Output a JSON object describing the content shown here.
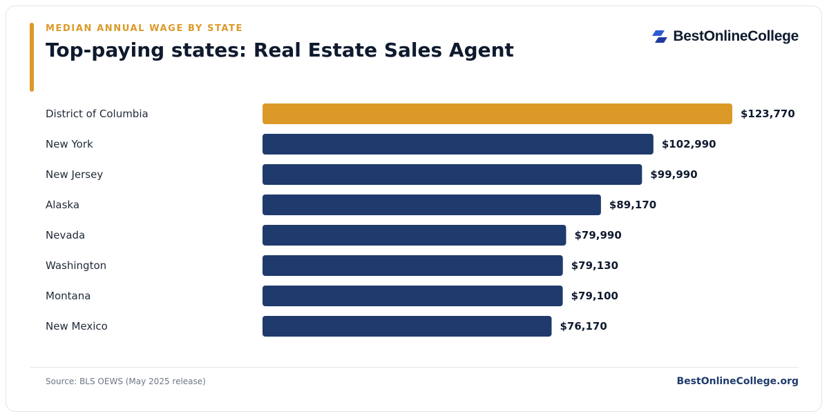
{
  "header": {
    "eyebrow": "MEDIAN ANNUAL WAGE BY STATE",
    "title": "Top-paying states: Real Estate Sales Agent",
    "logo_text": "BestOnlineCollege"
  },
  "colors": {
    "accent": "#db9a28",
    "bar": "#1f3a6c",
    "highlight_bar": "#db9a28"
  },
  "chart_data": {
    "type": "bar",
    "orientation": "horizontal",
    "categories": [
      "District of Columbia",
      "New York",
      "New Jersey",
      "Alaska",
      "Nevada",
      "Washington",
      "Montana",
      "New Mexico"
    ],
    "values": [
      123770,
      102990,
      99990,
      89170,
      79990,
      79130,
      79100,
      76170
    ],
    "value_labels": [
      "$123,770",
      "$102,990",
      "$99,990",
      "$89,170",
      "$79,990",
      "$79,130",
      "$79,100",
      "$76,170"
    ],
    "highlight_index": 0,
    "title": "Top-paying states: Real Estate Sales Agent",
    "xlabel": "",
    "ylabel": "",
    "grid": false
  },
  "footer": {
    "source": "Source: BLS OEWS (May 2025 release)",
    "site": "BestOnlineCollege.org"
  }
}
